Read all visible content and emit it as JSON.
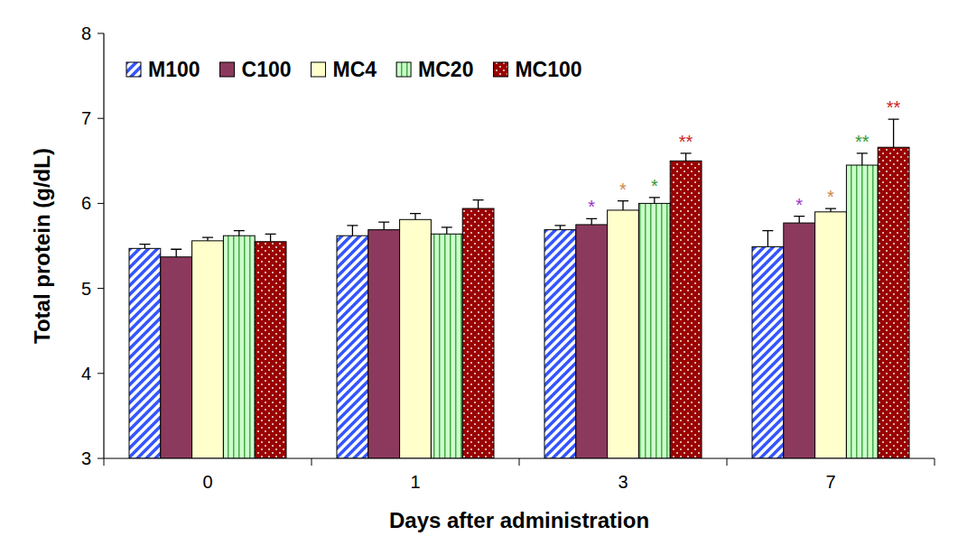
{
  "chart_data": {
    "type": "bar",
    "x_label": "Days after administration",
    "y_label": "Total protein (g/dL)",
    "categories": [
      "0",
      "1",
      "3",
      "7"
    ],
    "ylim": [
      3,
      8
    ],
    "yticks": [
      3,
      4,
      5,
      6,
      7,
      8
    ],
    "grid": false,
    "legend": "top-left",
    "series": [
      {
        "name": "M100",
        "color": "#3355ff",
        "values": [
          5.47,
          5.62,
          5.69,
          5.49
        ],
        "errors": [
          0.05,
          0.12,
          0.05,
          0.19
        ],
        "annotations": [
          null,
          null,
          null,
          null
        ]
      },
      {
        "name": "C100",
        "color": "#8b3a5e",
        "values": [
          5.37,
          5.69,
          5.75,
          5.77
        ],
        "errors": [
          0.09,
          0.09,
          0.07,
          0.08
        ],
        "annotations": [
          null,
          null,
          "*",
          "*"
        ]
      },
      {
        "name": "MC4",
        "color": "#ffffcc",
        "values": [
          5.56,
          5.81,
          5.92,
          5.9
        ],
        "errors": [
          0.04,
          0.07,
          0.11,
          0.04
        ],
        "annotations": [
          null,
          null,
          "*",
          "*"
        ]
      },
      {
        "name": "MC20",
        "color": "#ccffcc",
        "values": [
          5.62,
          5.64,
          6.0,
          6.45
        ],
        "errors": [
          0.06,
          0.08,
          0.07,
          0.14
        ],
        "annotations": [
          null,
          null,
          "*",
          "**"
        ]
      },
      {
        "name": "MC100",
        "color": "#990000",
        "values": [
          5.55,
          5.94,
          6.5,
          6.66
        ],
        "errors": [
          0.09,
          0.1,
          0.09,
          0.33
        ],
        "annotations": [
          null,
          null,
          "**",
          "**"
        ]
      }
    ]
  }
}
